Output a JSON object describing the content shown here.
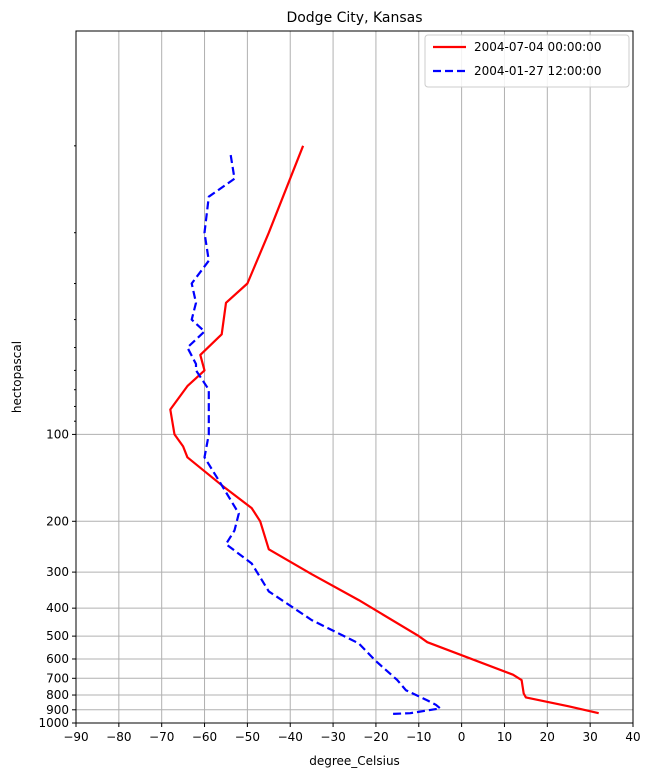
{
  "chart_data": {
    "type": "line",
    "title": "Dodge City, Kansas",
    "xlabel": "degree_Celsius",
    "ylabel": "hectopascal",
    "x_scale": "linear",
    "y_scale": "log",
    "y_inverted": true,
    "xlim": [
      -90,
      40
    ],
    "ylim": [
      1000,
      4
    ],
    "xticks": [
      -90,
      -80,
      -70,
      -60,
      -50,
      -40,
      -30,
      -20,
      -10,
      0,
      10,
      20,
      30,
      40
    ],
    "yticks": [
      100,
      200,
      300,
      400,
      500,
      600,
      700,
      800,
      900,
      1000
    ],
    "grid": true,
    "legend_position": "top-right",
    "series": [
      {
        "name": "2004-07-04 00:00:00",
        "color": "#ff0000",
        "linestyle": "solid",
        "points": [
          [
            32,
            925
          ],
          [
            25,
            875
          ],
          [
            15,
            815
          ],
          [
            14.5,
            790
          ],
          [
            14,
            710
          ],
          [
            12,
            680
          ],
          [
            -8,
            525
          ],
          [
            -10,
            500
          ],
          [
            -24,
            375
          ],
          [
            -35,
            305
          ],
          [
            -45,
            250
          ],
          [
            -47,
            200
          ],
          [
            -49,
            180
          ],
          [
            -56,
            150
          ],
          [
            -64,
            120
          ],
          [
            -65,
            110
          ],
          [
            -67,
            100
          ],
          [
            -68,
            82
          ],
          [
            -64,
            68
          ],
          [
            -60,
            60
          ],
          [
            -61,
            53
          ],
          [
            -56,
            45
          ],
          [
            -55,
            35
          ],
          [
            -50,
            30
          ],
          [
            -45,
            20
          ],
          [
            -37,
            10
          ]
        ]
      },
      {
        "name": "2004-01-27 12:00:00",
        "color": "#0000ff",
        "linestyle": "dashed",
        "points": [
          [
            -16,
            930
          ],
          [
            -12,
            925
          ],
          [
            -5,
            890
          ],
          [
            -6,
            865
          ],
          [
            -8,
            835
          ],
          [
            -13,
            770
          ],
          [
            -15,
            710
          ],
          [
            -20,
            610
          ],
          [
            -24,
            530
          ],
          [
            -35,
            440
          ],
          [
            -37,
            420
          ],
          [
            -45,
            350
          ],
          [
            -49,
            280
          ],
          [
            -55,
            240
          ],
          [
            -53,
            215
          ],
          [
            -52,
            188
          ],
          [
            -56,
            150
          ],
          [
            -60,
            120
          ],
          [
            -59,
            100
          ],
          [
            -59,
            70
          ],
          [
            -62,
            60
          ],
          [
            -62,
            57
          ],
          [
            -64,
            50
          ],
          [
            -60,
            44
          ],
          [
            -63,
            40
          ],
          [
            -62,
            35
          ],
          [
            -63,
            30
          ],
          [
            -59,
            25
          ],
          [
            -60,
            20
          ],
          [
            -59,
            15
          ],
          [
            -53,
            13
          ],
          [
            -54,
            10.5
          ]
        ]
      }
    ]
  }
}
